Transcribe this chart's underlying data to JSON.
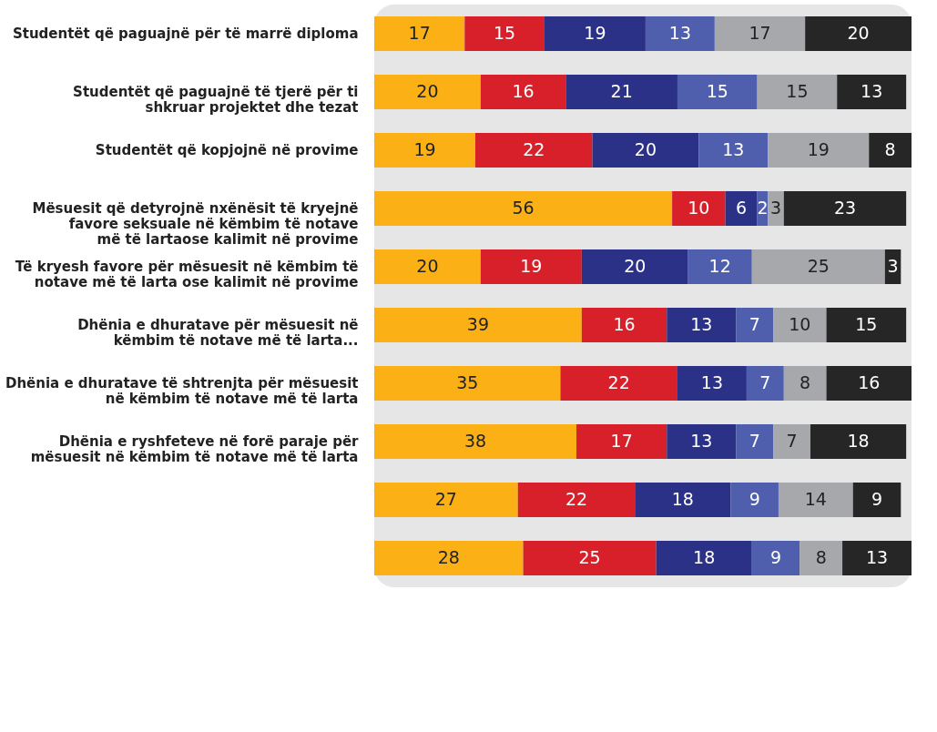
{
  "chart_data": {
    "type": "bar",
    "orientation": "horizontal",
    "stacked": true,
    "data_labels": true,
    "grid": false,
    "categories": [
      "Studentët që paguajnë për të marrë diploma",
      "Studentët që paguajnë të tjerë për ti\nshkruar projektet dhe tezat",
      "Studentët që kopjojnë në provime",
      "Mësuesit që detyrojnë nxënësit të kryejnë\nfavore seksuale në këmbim të notave\nmë të lartaose kalimit në provime",
      "Të kryesh favore për mësuesit në këmbim të\nnotave më të larta ose kalimit në provime",
      "Dhënia e dhuratave për mësuesit në\nkëmbim të notave më të larta...",
      "Dhënia e dhuratave të shtrenjta për mësuesit\nnë këmbim të notave më të larta",
      "Dhënia e ryshfeteve në forë paraje për\nmësuesit në këmbim të notave më të larta",
      null,
      null
    ],
    "series": [
      {
        "color": "#fbb116",
        "values": [
          17,
          20,
          19,
          56,
          20,
          39,
          35,
          38,
          27,
          28
        ]
      },
      {
        "color": "#d7202a",
        "values": [
          15,
          16,
          22,
          10,
          19,
          16,
          22,
          17,
          22,
          25
        ]
      },
      {
        "color": "#2b3187",
        "values": [
          19,
          21,
          20,
          6,
          20,
          13,
          13,
          13,
          18,
          18
        ]
      },
      {
        "color": "#4f5fae",
        "values": [
          13,
          15,
          13,
          2,
          12,
          7,
          7,
          7,
          9,
          9
        ]
      },
      {
        "color": "#a7a8ab",
        "values": [
          17,
          15,
          19,
          3,
          25,
          10,
          8,
          7,
          14,
          8
        ]
      },
      {
        "color": "#262626",
        "values": [
          20,
          13,
          8,
          23,
          3,
          15,
          16,
          18,
          9,
          13
        ]
      }
    ]
  }
}
